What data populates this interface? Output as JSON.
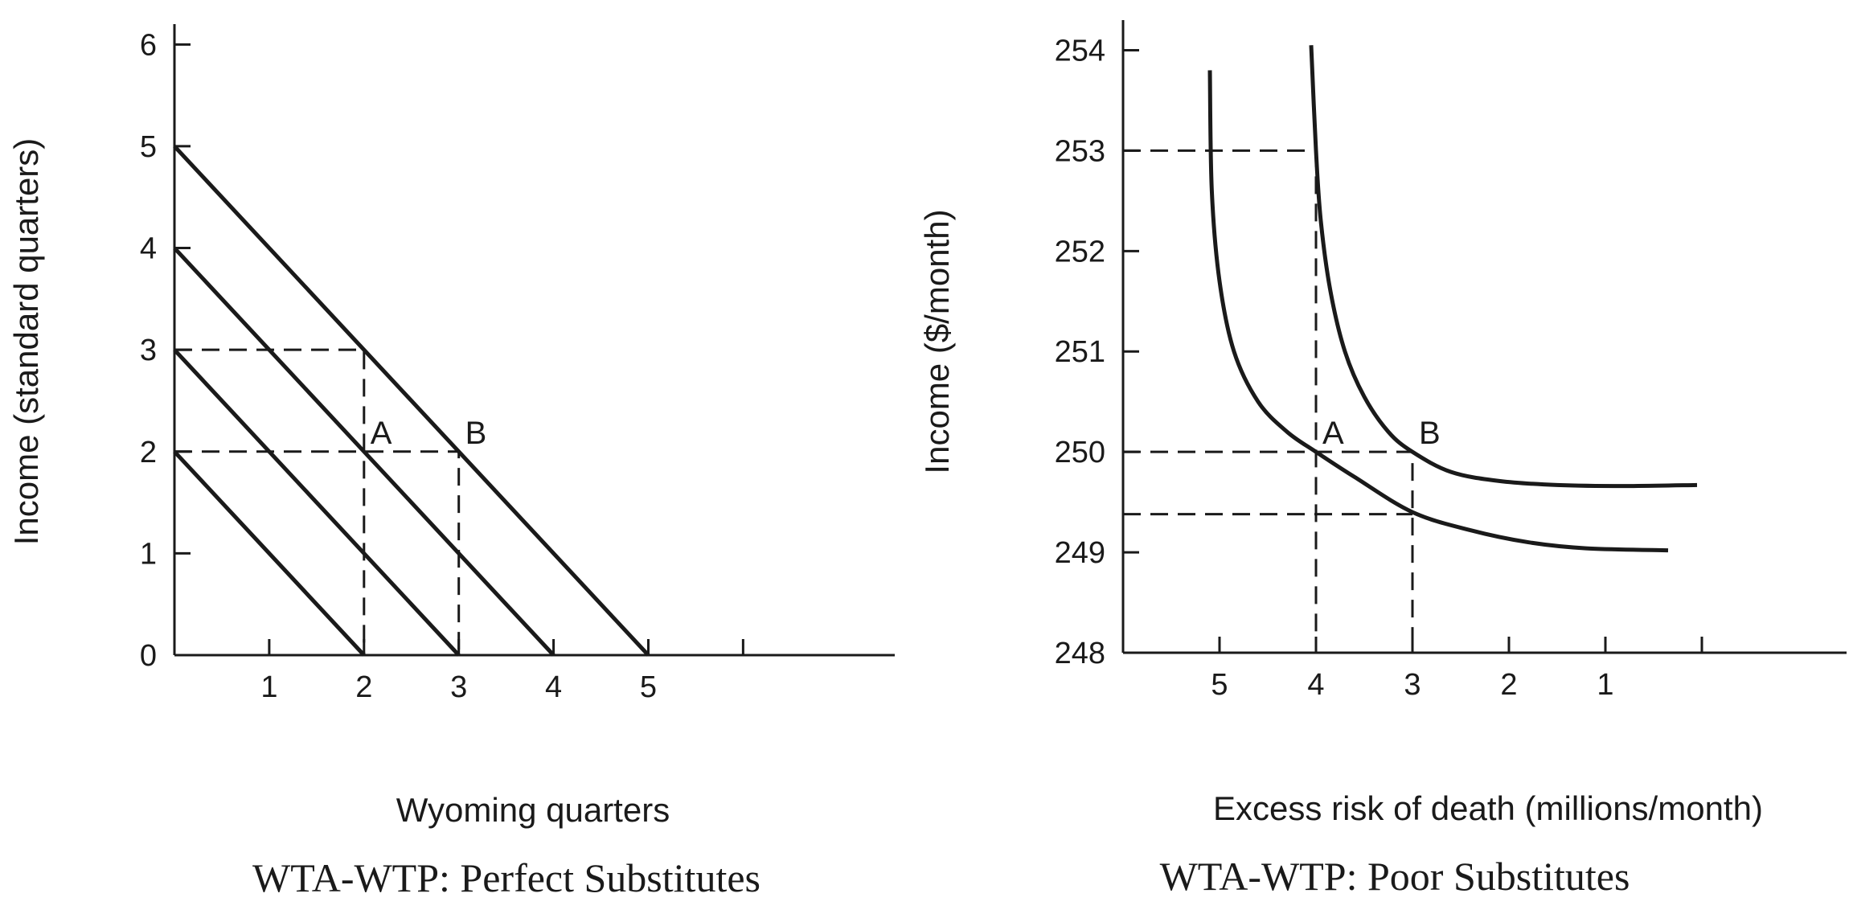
{
  "chart_data": [
    {
      "type": "line",
      "caption": "WTA-WTP: Perfect Substitutes",
      "xlabel": "Wyoming quarters",
      "ylabel": "Income (standard quarters)",
      "xlim": [
        0,
        7.6
      ],
      "ylim": [
        0,
        6.2
      ],
      "x_ticks": [
        1,
        2,
        3,
        4,
        5,
        6
      ],
      "x_tick_labels": [
        "1",
        "2",
        "3",
        "4",
        "5",
        ""
      ],
      "y_ticks": [
        0,
        1,
        2,
        3,
        4,
        5,
        6
      ],
      "y_tick_labels": [
        "0",
        "1",
        "2",
        "3",
        "4",
        "5",
        "6"
      ],
      "series": [
        {
          "points": [
            [
              0,
              2
            ],
            [
              2,
              0
            ]
          ]
        },
        {
          "points": [
            [
              0,
              3
            ],
            [
              3,
              0
            ]
          ]
        },
        {
          "points": [
            [
              0,
              4
            ],
            [
              4,
              0
            ]
          ]
        },
        {
          "points": [
            [
              0,
              5
            ],
            [
              5,
              0
            ]
          ]
        }
      ],
      "guides": [
        {
          "points": [
            [
              0,
              3
            ],
            [
              2,
              3
            ],
            [
              2,
              0
            ]
          ]
        },
        {
          "points": [
            [
              0,
              2
            ],
            [
              3,
              2
            ],
            [
              3,
              0
            ]
          ]
        }
      ],
      "annotations": [
        {
          "text": "A",
          "x": 2,
          "y": 2
        },
        {
          "text": "B",
          "x": 3,
          "y": 2
        }
      ]
    },
    {
      "type": "line",
      "caption": "WTA-WTP: Poor Substitutes",
      "xlabel": "Excess risk of death (millions/month)",
      "ylabel": "Income ($/month)",
      "x_reversed": true,
      "xlim": [
        6.0,
        -1.5
      ],
      "ylim": [
        248,
        254.3
      ],
      "x_ticks": [
        5,
        4,
        3,
        2,
        1,
        0
      ],
      "x_tick_labels": [
        "5",
        "4",
        "3",
        "2",
        "1",
        ""
      ],
      "y_ticks": [
        248,
        249,
        250,
        251,
        252,
        253,
        254
      ],
      "y_tick_labels": [
        "248",
        "249",
        "250",
        "251",
        "252",
        "253",
        "254"
      ],
      "series": [
        {
          "points": [
            [
              5.1,
              253.8
            ],
            [
              5.08,
              252.6
            ],
            [
              5.0,
              251.7
            ],
            [
              4.85,
              251.0
            ],
            [
              4.6,
              250.5
            ],
            [
              4.3,
              250.2
            ],
            [
              4.0,
              250.0
            ],
            [
              3.6,
              249.75
            ],
            [
              3.0,
              249.4
            ],
            [
              2.4,
              249.22
            ],
            [
              1.8,
              249.1
            ],
            [
              1.2,
              249.04
            ],
            [
              0.35,
              249.02
            ]
          ]
        },
        {
          "points": [
            [
              4.05,
              254.05
            ],
            [
              4.0,
              253.0
            ],
            [
              3.95,
              252.3
            ],
            [
              3.85,
              251.6
            ],
            [
              3.7,
              251.0
            ],
            [
              3.5,
              250.55
            ],
            [
              3.25,
              250.2
            ],
            [
              3.0,
              250.0
            ],
            [
              2.6,
              249.8
            ],
            [
              2.1,
              249.71
            ],
            [
              1.5,
              249.67
            ],
            [
              0.8,
              249.66
            ],
            [
              0.05,
              249.67
            ]
          ]
        }
      ],
      "guides": [
        {
          "points": [
            [
              6.0,
              253
            ],
            [
              4.0,
              253
            ],
            [
              4.0,
              248
            ]
          ]
        },
        {
          "points": [
            [
              6.0,
              250
            ],
            [
              3.0,
              250
            ],
            [
              3.0,
              248
            ]
          ]
        },
        {
          "points": [
            [
              6.0,
              249.38
            ],
            [
              3.0,
              249.38
            ]
          ]
        }
      ],
      "annotations": [
        {
          "text": "A",
          "x": 4,
          "y": 250
        },
        {
          "text": "B",
          "x": 3,
          "y": 250
        }
      ]
    }
  ]
}
